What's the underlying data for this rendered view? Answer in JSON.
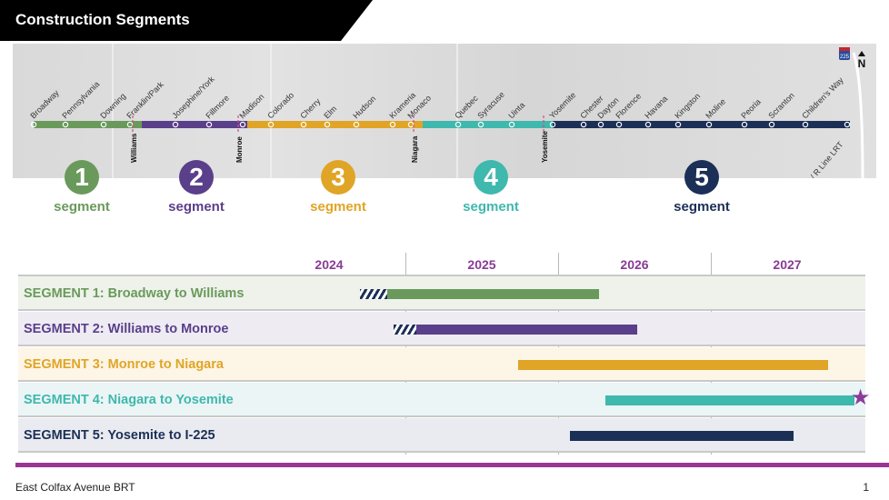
{
  "header": {
    "title": "Construction Segments"
  },
  "map": {
    "north_label": "N",
    "interstate_shield": "225",
    "stations": [
      "Broadway",
      "Pennsylvania",
      "Downing",
      "Franklin/Park",
      "Josephine/York",
      "Fillmore",
      "Madison",
      "Colorado",
      "Cherry",
      "Elm",
      "Hudson",
      "Krameria",
      "Monaco",
      "Quebec",
      "Syracuse",
      "Uinta",
      "Yosemite",
      "Chester",
      "Dayton",
      "Florence",
      "Havana",
      "Kingston",
      "Moline",
      "Peoria",
      "Scranton",
      "Children's Way",
      "Colfax Station / R Line LRT"
    ],
    "boundaries": [
      "Williams",
      "Monroe",
      "Niagara",
      "Yosemite"
    ],
    "segments": [
      {
        "number": "1",
        "label": "segment",
        "color": "#6a9a5b"
      },
      {
        "number": "2",
        "label": "segment",
        "color": "#5a3f8a"
      },
      {
        "number": "3",
        "label": "segment",
        "color": "#e0a526"
      },
      {
        "number": "4",
        "label": "segment",
        "color": "#3fb8ad"
      },
      {
        "number": "5",
        "label": "segment",
        "color": "#1c2f57"
      }
    ]
  },
  "schedule": {
    "years": [
      "2024",
      "2025",
      "2026",
      "2027"
    ],
    "rows": [
      {
        "label": "SEGMENT 1: Broadway to Williams",
        "color": "#6a9a5b",
        "bg": "#eef2ea",
        "prep_start": 2024.7,
        "start": 2024.88,
        "end": 2026.27,
        "star": false
      },
      {
        "label": "SEGMENT 2: Williams to Monroe",
        "color": "#5a3f8a",
        "bg": "#eeebf3",
        "prep_start": 2024.92,
        "start": 2025.07,
        "end": 2026.52,
        "star": false
      },
      {
        "label": "SEGMENT 3: Monroe to Niagara",
        "color": "#e0a526",
        "bg": "#fdf5e6",
        "prep_start": null,
        "start": 2025.74,
        "end": 2027.77,
        "star": false
      },
      {
        "label": "SEGMENT 4: Niagara to Yosemite",
        "color": "#3fb8ad",
        "bg": "#ebf5f5",
        "prep_start": null,
        "start": 2026.31,
        "end": 2027.94,
        "star": true
      },
      {
        "label": "SEGMENT 5: Yosemite to I-225",
        "color": "#1c2f57",
        "bg": "#e9ebf0",
        "prep_start": null,
        "start": 2026.08,
        "end": 2027.54,
        "star": false
      }
    ]
  },
  "footer": {
    "text": "East Colfax Avenue BRT",
    "page": "1"
  }
}
